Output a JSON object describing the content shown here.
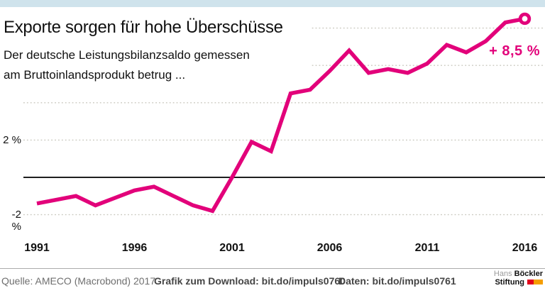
{
  "header": {
    "title": "Exporte sorgen für hohe Überschüsse",
    "subtitle_line1": "Der deutsche Leistungsbilanzsaldo gemessen",
    "subtitle_line2": "am Bruttoinlandsprodukt betrug ..."
  },
  "chart_data": {
    "type": "line",
    "title": "Exporte sorgen für hohe Überschüsse",
    "subtitle": "Der deutsche Leistungsbilanzsaldo gemessen am Bruttoinlandsprodukt betrug ...",
    "x": [
      1991,
      1992,
      1993,
      1994,
      1995,
      1996,
      1997,
      1998,
      1999,
      2000,
      2001,
      2002,
      2003,
      2004,
      2005,
      2006,
      2007,
      2008,
      2009,
      2010,
      2011,
      2012,
      2013,
      2014,
      2015,
      2016
    ],
    "values": [
      -1.4,
      -1.2,
      -1.0,
      -1.5,
      -1.1,
      -0.7,
      -0.5,
      -1.0,
      -1.5,
      -1.8,
      0.0,
      1.9,
      1.4,
      4.5,
      4.7,
      5.7,
      6.8,
      5.6,
      5.8,
      5.6,
      6.1,
      7.1,
      6.7,
      7.3,
      8.3,
      8.5
    ],
    "y_unit": "%",
    "ylim": [
      -3,
      9
    ],
    "x_tick_labels": [
      "1991",
      "1996",
      "2001",
      "2006",
      "2011",
      "2016"
    ],
    "y_tick_labels": [
      {
        "value": 2,
        "label": "2 %"
      },
      {
        "value": -2,
        "label": "-2 %"
      }
    ],
    "gridline_values": [
      8,
      6,
      4,
      2,
      -2
    ],
    "zero_line_value": 0,
    "grid_style": "dashed",
    "legend": "none",
    "annotation": {
      "text": "+ 8,5 %",
      "x": 2016,
      "y": 8.5
    },
    "end_marker": "open-ring",
    "line_color": "#e2007a"
  },
  "footer": {
    "source": "Quelle: AMECO (Macrobond) 2017",
    "download": "Grafik zum Download: bit.do/impuls0760",
    "data": "Daten: bit.do/impuls0761"
  },
  "logo": {
    "name_light": "Hans",
    "name_bold": "Böckler",
    "line2": "Stiftung"
  },
  "colors": {
    "accent_line": "#e2007a",
    "top_bar": "#cfe3ec",
    "gridline": "#c9c8be",
    "zero_line": "#1f1f1f",
    "footer_gray": "#6f6f6f",
    "footer_bold": "#454545",
    "logo_red": "#e2001c",
    "logo_orange": "#f59e00"
  }
}
